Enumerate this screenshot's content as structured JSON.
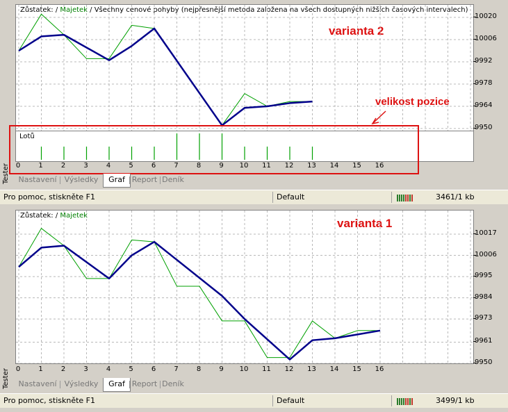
{
  "top": {
    "annotation": "varianta 2",
    "legend": {
      "balance": "Zůstatek:",
      "sep1": " / ",
      "equity": "Majetek",
      "sep2": " / ",
      "desc": "Všechny cenové pohyby (nejpřesnější metoda založena na všech dostupných nižších časových intervalech)"
    },
    "y_ticks": [
      "10020",
      "10006",
      "9992",
      "9978",
      "9964",
      "9950"
    ],
    "lot_label": "Lotů",
    "size_annotation": "velikost pozice",
    "x_ticks": [
      "0",
      "1",
      "2",
      "3",
      "4",
      "5",
      "6",
      "7",
      "8",
      "9",
      "10",
      "11",
      "12",
      "13",
      "14",
      "15",
      "16"
    ],
    "lots": [
      1,
      1,
      1,
      1,
      1,
      1,
      2,
      2,
      2,
      1,
      1,
      1,
      1
    ],
    "balance": [
      [
        0,
        9999
      ],
      [
        1,
        10008
      ],
      [
        2,
        10009
      ],
      [
        4,
        9993
      ],
      [
        5,
        10002
      ],
      [
        6,
        10013
      ],
      [
        9,
        9952
      ],
      [
        10,
        9963
      ],
      [
        11,
        9964
      ],
      [
        12,
        9966
      ],
      [
        13,
        9967
      ]
    ],
    "equity": [
      [
        0,
        9999
      ],
      [
        1,
        10022
      ],
      [
        2,
        10009
      ],
      [
        3,
        9994
      ],
      [
        4,
        9994
      ],
      [
        5,
        10015
      ],
      [
        6,
        10013
      ],
      [
        9,
        9952
      ],
      [
        10,
        9972
      ],
      [
        11,
        9964
      ],
      [
        12,
        9967
      ],
      [
        13,
        9967
      ]
    ]
  },
  "bottom": {
    "annotation": "varianta 1",
    "legend": {
      "balance": "Zůstatek:",
      "sep1": " / ",
      "equity": "Majetek"
    },
    "y_ticks": [
      "10017",
      "10006",
      "9995",
      "9984",
      "9973",
      "9961",
      "9950"
    ],
    "x_ticks": [
      "0",
      "1",
      "2",
      "3",
      "4",
      "5",
      "6",
      "7",
      "8",
      "9",
      "10",
      "11",
      "12",
      "13",
      "14",
      "15",
      "16"
    ],
    "balance": [
      [
        0,
        10000
      ],
      [
        1,
        10010
      ],
      [
        2,
        10011
      ],
      [
        4,
        9994
      ],
      [
        5,
        10006
      ],
      [
        6,
        10013
      ],
      [
        9,
        9985
      ],
      [
        10,
        9973
      ],
      [
        12,
        9952
      ],
      [
        13,
        9962
      ],
      [
        14,
        9963
      ],
      [
        15,
        9965
      ],
      [
        16,
        9967
      ]
    ],
    "equity": [
      [
        0,
        10000
      ],
      [
        1,
        10020
      ],
      [
        2,
        10011
      ],
      [
        3,
        9994
      ],
      [
        4,
        9994
      ],
      [
        5,
        10014
      ],
      [
        6,
        10013
      ],
      [
        7,
        9990
      ],
      [
        8,
        9990
      ],
      [
        9,
        9972
      ],
      [
        10,
        9972
      ],
      [
        11,
        9953
      ],
      [
        12,
        9953
      ],
      [
        13,
        9972
      ],
      [
        14,
        9963
      ],
      [
        15,
        9967
      ],
      [
        16,
        9967
      ]
    ]
  },
  "tabs": [
    "Nastavení",
    "Výsledky",
    "Graf",
    "Report",
    "Deník"
  ],
  "active_tab": "Graf",
  "side_label": "Tester",
  "statusbar_top": {
    "help": "Pro pomoc, stiskněte F1",
    "profile": "Default",
    "traffic": "3461/1 kb"
  },
  "statusbar_bottom": {
    "help": "Pro pomoc, stiskněte F1",
    "profile": "Default",
    "traffic": "3499/1 kb"
  },
  "colors": {
    "balance": "#00008b",
    "equity": "#00a000",
    "annotation": "#dd1111"
  }
}
